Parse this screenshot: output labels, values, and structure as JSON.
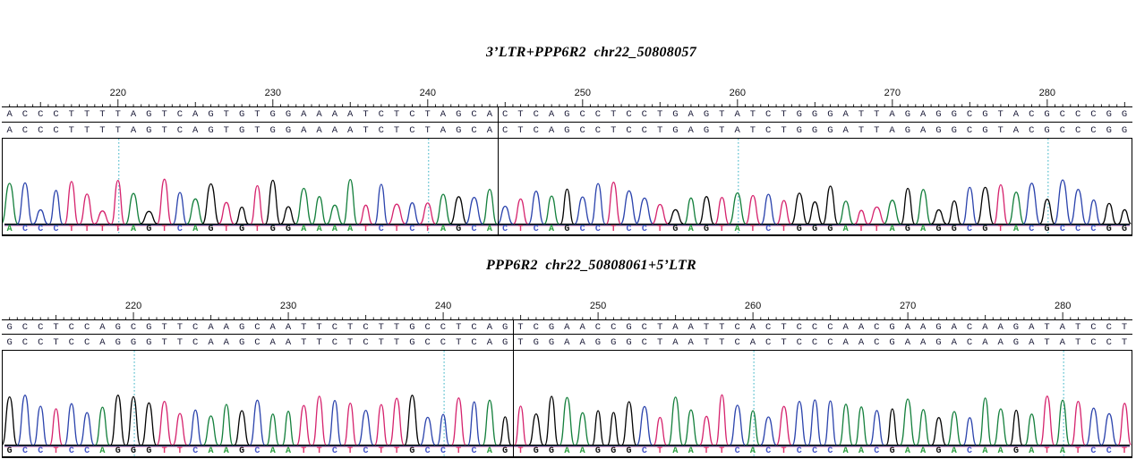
{
  "figure": {
    "background": "#ffffff",
    "gridline_color": "#38b2c4",
    "divider_color": "#000000"
  },
  "base_letter_colors": {
    "A": "#2a9d3f",
    "C": "#4355c8",
    "G": "#111111",
    "T": "#e0356e"
  },
  "base_trace_colors": {
    "A": "#15803d",
    "C": "#2c44ad",
    "G": "#040404",
    "T": "#d6246e"
  },
  "chart_data": [
    {
      "type": "chromatogram",
      "title": "3’LTR+PPP6R2  chr22_50808057",
      "x_axis_ticks": [
        220,
        230,
        240,
        250,
        260,
        270,
        280
      ],
      "ruler_first_label_col": 7,
      "gridline_positions": [
        220,
        240,
        260,
        280
      ],
      "gridline_cols": [
        7,
        27,
        47,
        67
      ],
      "sequence_row_1": "ACCCTTTTAGTCAGTGTGGAAAATCTCTAGCACTCAGCCTCCTGAGTATCTGGGATTAGAGGCGTACGCCCGG",
      "sequence_row_2": "ACCCTTTTAGTCAGTGTGGAAAATCTCTAGCACTCAGCCTCCTGAGTATCTGGGATTAGAGGCGTACGCCCGG",
      "trace_sequence": "ACCCTTTTAGTCAGTGTGGAAAATCTCTAGCACTCAGCCTCCTGAGTATCTGGGATTAGAGGCGTACGCCCGG",
      "junction_after_base": 32
    },
    {
      "type": "chromatogram",
      "title": "PPP6R2  chr22_50808061+5’LTR",
      "x_axis_ticks": [
        220,
        230,
        240,
        250,
        260,
        270,
        280
      ],
      "ruler_first_label_col": 8,
      "gridline_positions": [
        220,
        240,
        260,
        280
      ],
      "gridline_cols": [
        8,
        28,
        48,
        68
      ],
      "sequence_row_1": "GCCTCCAGCGTTCAAGCAATTCTCTTGCCTCAGTCGAACCGCTAATTCACTCCCAACGAAGACAAGATATCCT",
      "sequence_row_2": "GCCTCCAGGGTTCAAGCAATTCTCTTGCCTCAGTGGAAGGGCTAATTCACTCCCAACGAAGACAAGATATCCT",
      "trace_sequence": "GCCTCCAGGGTTCAAGCAATTCTCTTGCCTCAGTGGAAGGGCTAATTCACTCCCAACGAAGACAAGATATCCT",
      "junction_after_base": 33
    }
  ]
}
